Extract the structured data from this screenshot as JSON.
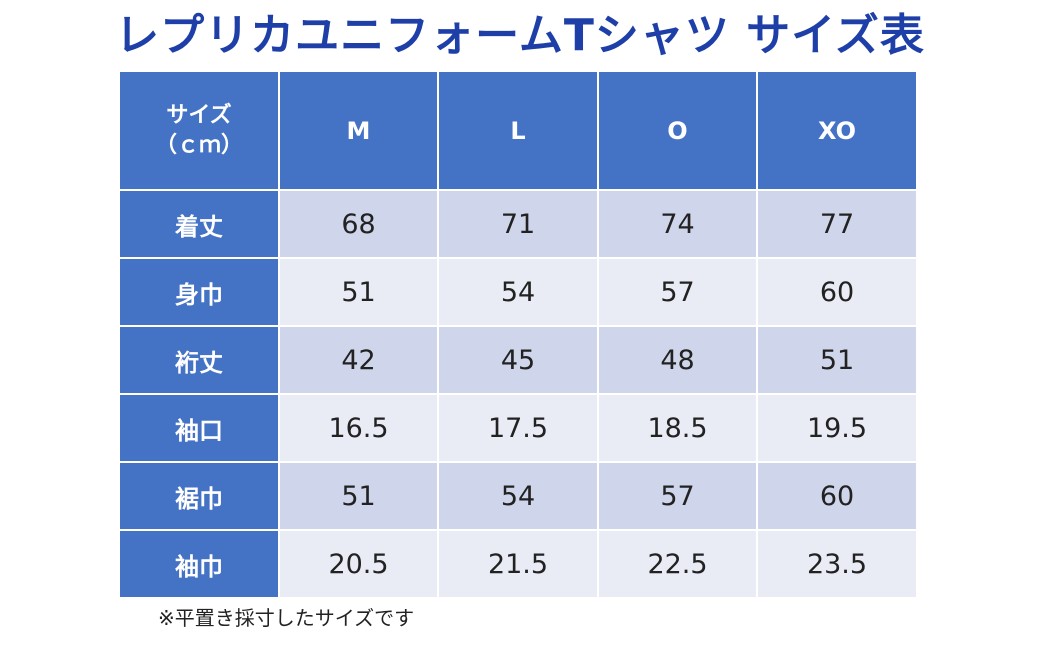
{
  "title": "レプリカユニフォームTシャツ サイズ表",
  "table": {
    "corner_line1": "サイズ",
    "corner_line2": "（ｃｍ）",
    "columns": [
      "M",
      "L",
      "O",
      "XO"
    ],
    "rows": [
      {
        "label": "着丈",
        "values": [
          "68",
          "71",
          "74",
          "77"
        ]
      },
      {
        "label": "身巾",
        "values": [
          "51",
          "54",
          "57",
          "60"
        ]
      },
      {
        "label": "裄丈",
        "values": [
          "42",
          "45",
          "48",
          "51"
        ]
      },
      {
        "label": "袖口",
        "values": [
          "16.5",
          "17.5",
          "18.5",
          "19.5"
        ]
      },
      {
        "label": "裾巾",
        "values": [
          "51",
          "54",
          "57",
          "60"
        ]
      },
      {
        "label": "袖巾",
        "values": [
          "20.5",
          "21.5",
          "22.5",
          "23.5"
        ]
      }
    ]
  },
  "note": "※平置き採寸したサイズです",
  "colors": {
    "title": "#1f3fa8",
    "header_bg": "#4472c4",
    "row_odd_bg": "#cfd5ea",
    "row_even_bg": "#e9ebf5"
  }
}
